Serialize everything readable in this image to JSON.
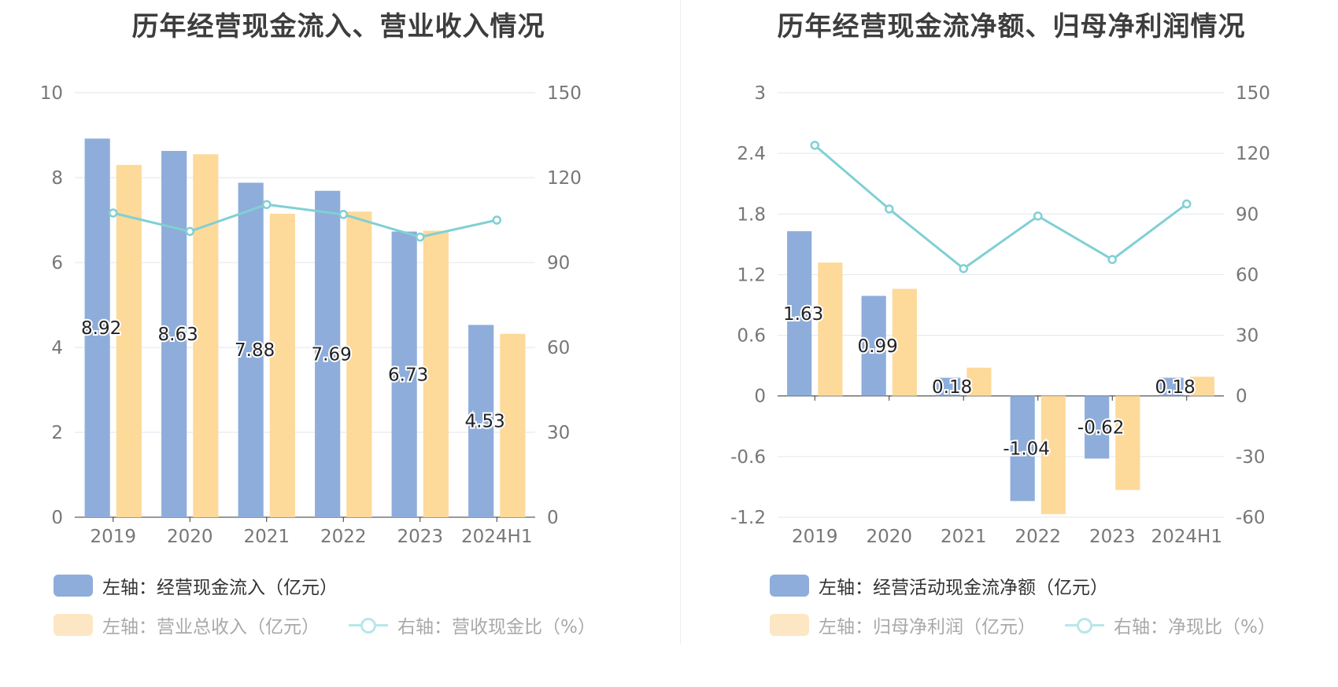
{
  "colors": {
    "bar_primary": "#8eadda",
    "bar_secondary": "#fdd99a",
    "line": "#80d0d4",
    "legend_faded_text": "#a9a9a9",
    "legend_text": "#333333"
  },
  "left": {
    "title": "历年经营现金流入、营业收入情况",
    "legend": {
      "bar1": "左轴：经营现金流入（亿元）",
      "bar2": "左轴：营业总收入（亿元）",
      "line": "右轴：营收现金比（%）"
    }
  },
  "right": {
    "title": "历年经营现金流净额、归母净利润情况",
    "legend": {
      "bar1": "左轴：经营活动现金流净额（亿元）",
      "bar2": "左轴：归母净利润（亿元）",
      "line": "右轴：净现比（%）"
    }
  },
  "chart_data": [
    {
      "type": "bar",
      "title": "历年经营现金流入、营业收入情况",
      "categories": [
        "2019",
        "2020",
        "2021",
        "2022",
        "2023",
        "2024H1"
      ],
      "series": [
        {
          "name": "左轴：经营现金流入（亿元）",
          "axis": "left",
          "values": [
            8.92,
            8.63,
            7.88,
            7.69,
            6.73,
            4.53
          ],
          "labels": [
            "8.92",
            "8.63",
            "7.88",
            "7.69",
            "6.73",
            "4.53"
          ]
        },
        {
          "name": "左轴：营业总收入（亿元）",
          "axis": "left",
          "values": [
            8.3,
            8.55,
            7.15,
            7.2,
            6.75,
            4.32
          ]
        },
        {
          "name": "右轴：营收现金比（%）",
          "axis": "right",
          "type": "line",
          "values": [
            107.5,
            101,
            110.5,
            107,
            99,
            105
          ]
        }
      ],
      "y_left": {
        "min": 0,
        "max": 10,
        "ticks": [
          "0",
          "2",
          "4",
          "6",
          "8",
          "10"
        ]
      },
      "y_right": {
        "min": 0,
        "max": 150,
        "ticks": [
          "0",
          "30",
          "60",
          "90",
          "120",
          "150"
        ]
      },
      "grid": true,
      "legend_position": "bottom"
    },
    {
      "type": "bar",
      "title": "历年经营现金流净额、归母净利润情况",
      "categories": [
        "2019",
        "2020",
        "2021",
        "2022",
        "2023",
        "2024H1"
      ],
      "series": [
        {
          "name": "左轴：经营活动现金流净额（亿元）",
          "axis": "left",
          "values": [
            1.63,
            0.99,
            0.18,
            -1.04,
            -0.62,
            0.18
          ],
          "labels": [
            "1.63",
            "0.99",
            "0.18",
            "-1.04",
            "-0.62",
            "0.18"
          ]
        },
        {
          "name": "左轴：归母净利润（亿元）",
          "axis": "left",
          "values": [
            1.32,
            1.06,
            0.28,
            -1.17,
            -0.93,
            0.19
          ]
        },
        {
          "name": "右轴：净现比（%）",
          "axis": "right",
          "type": "line",
          "values": [
            124,
            92.5,
            63,
            89,
            67.5,
            95
          ]
        }
      ],
      "y_left": {
        "min": -1.2,
        "max": 3,
        "ticks": [
          "-1.2",
          "-0.6",
          "0",
          "0.6",
          "1.2",
          "1.8",
          "2.4",
          "3"
        ]
      },
      "y_right": {
        "min": -60,
        "max": 150,
        "ticks": [
          "-60",
          "-30",
          "0",
          "30",
          "60",
          "90",
          "120",
          "150"
        ]
      },
      "grid": true,
      "legend_position": "bottom"
    }
  ]
}
